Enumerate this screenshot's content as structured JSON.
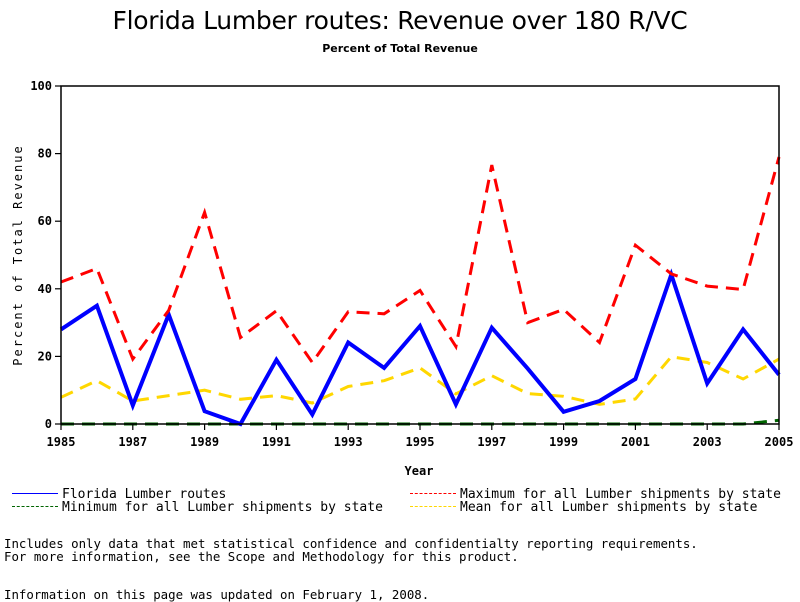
{
  "chart_data": {
    "type": "line",
    "title": "Florida Lumber routes: Revenue over 180 R/VC",
    "subtitle": "Percent of Total Revenue",
    "xlabel": "Year",
    "ylabel": "Percent of Total Revenue",
    "xlim": [
      1985,
      2005
    ],
    "ylim": [
      0,
      100
    ],
    "x_ticks": [
      "1985",
      "1987",
      "1989",
      "1991",
      "1993",
      "1995",
      "1997",
      "1999",
      "2001",
      "2003",
      "2005"
    ],
    "y_ticks": [
      "0",
      "20",
      "40",
      "60",
      "80",
      "100"
    ],
    "grid": false,
    "legend_position": "bottom",
    "x": [
      1985,
      1986,
      1987,
      1988,
      1989,
      1990,
      1991,
      1992,
      1993,
      1994,
      1995,
      1996,
      1997,
      1998,
      1999,
      2000,
      2001,
      2002,
      2003,
      2004,
      2005
    ],
    "series": [
      {
        "name": "Florida Lumber routes",
        "color": "#0000ff",
        "style": "solid",
        "values": [
          28,
          35,
          5.5,
          32.4,
          3.8,
          0,
          19,
          2.8,
          24.1,
          16.6,
          29,
          5.8,
          28.5,
          16.4,
          3.6,
          6.8,
          13.3,
          44.2,
          12,
          28,
          14.6
        ]
      },
      {
        "name": "Maximum for all Lumber shipments by state",
        "color": "#ff0000",
        "style": "dashed",
        "values": [
          42,
          46,
          19.2,
          33.6,
          62.6,
          25.6,
          33.5,
          18.2,
          33.2,
          32.6,
          39.5,
          22.9,
          76.6,
          30,
          33.9,
          24.1,
          52.9,
          44.4,
          40.8,
          39.8,
          79
        ]
      },
      {
        "name": "Minimum for all Lumber shipments by state",
        "color": "#006400",
        "style": "dashed",
        "values": [
          0,
          0,
          0,
          0,
          0,
          0,
          0,
          0,
          0,
          0,
          0,
          0,
          0,
          0,
          0,
          0,
          0,
          0,
          0,
          0,
          1.1
        ]
      },
      {
        "name": "Mean for all Lumber shipments by state",
        "color": "#ffd700",
        "style": "dashed",
        "values": [
          7.9,
          12.8,
          6.8,
          8.4,
          10,
          7.3,
          8.4,
          6.2,
          11.1,
          12.8,
          16.6,
          8.9,
          14.3,
          9,
          8.2,
          5.8,
          7.4,
          19.9,
          18.2,
          13.3,
          19.2
        ]
      }
    ]
  },
  "footnotes": {
    "line1": "Includes only data that met statistical confidence and confidentialty reporting requirements.",
    "line2": "For more information, see the Scope and Methodology for this product.",
    "updated": "Information on this page was updated on February 1, 2008."
  }
}
